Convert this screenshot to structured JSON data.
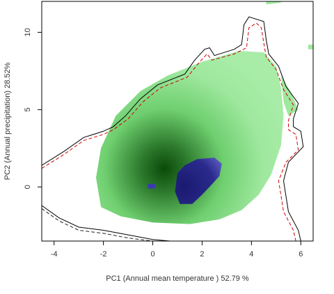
{
  "chart_data": {
    "type": "heatmap",
    "title": "",
    "xlabel": "PC1 (Annual mean temperature ) 52.79 %",
    "ylabel": "PC2 (Annual precipitation) 28.52%",
    "xlim": [
      -4.5,
      6.5
    ],
    "ylim": [
      -3.5,
      12
    ],
    "xticks": [
      {
        "value": -4,
        "label": "-4"
      },
      {
        "value": -2,
        "label": "-2"
      },
      {
        "value": 0,
        "label": "0"
      },
      {
        "value": 2,
        "label": "2"
      },
      {
        "value": 4,
        "label": "4"
      },
      {
        "value": 6,
        "label": "6"
      }
    ],
    "yticks": [
      {
        "value": 0,
        "label": "0"
      },
      {
        "value": 5,
        "label": "5"
      },
      {
        "value": 10,
        "label": "10"
      }
    ],
    "colors": {
      "density_low": "#9fe89f",
      "density_high": "#0a4a0a",
      "overlap_low": "#6a6ad0",
      "overlap_high": "#1a1a70",
      "contour_solid": "#000000",
      "contour_dashed": "#cc0000",
      "contour_dashed_2": "#222222"
    },
    "density_region": {
      "center": [
        0.7,
        0.7
      ],
      "polygon": [
        [
          -2.1,
          -1.3
        ],
        [
          -1.3,
          -1.9
        ],
        [
          0,
          -2.3
        ],
        [
          1.5,
          -2.4
        ],
        [
          2.7,
          -2.1
        ],
        [
          3.6,
          -1.5
        ],
        [
          4.3,
          -0.5
        ],
        [
          4.8,
          0.8
        ],
        [
          5.2,
          2.7
        ],
        [
          5.3,
          4.6
        ],
        [
          5.2,
          6.4
        ],
        [
          5.0,
          7.8
        ],
        [
          4.5,
          8.7
        ],
        [
          3.5,
          8.8
        ],
        [
          2.0,
          8.1
        ],
        [
          0.6,
          7.2
        ],
        [
          -0.5,
          6.2
        ],
        [
          -1.5,
          4.6
        ],
        [
          -2.1,
          2.5
        ],
        [
          -2.3,
          0.6
        ]
      ]
    },
    "overlap_region": {
      "polygon": [
        [
          1.0,
          0.9
        ],
        [
          1.3,
          1.4
        ],
        [
          1.8,
          1.8
        ],
        [
          2.5,
          1.9
        ],
        [
          2.8,
          1.5
        ],
        [
          2.7,
          0.7
        ],
        [
          2.3,
          0.0
        ],
        [
          2.0,
          -0.5
        ],
        [
          1.6,
          -1.1
        ],
        [
          1.1,
          -1.1
        ],
        [
          0.9,
          -0.3
        ]
      ],
      "square": [
        [
          -0.2,
          -0.1
        ],
        [
          0.1,
          -0.1
        ],
        [
          0.1,
          0.2
        ],
        [
          -0.2,
          0.2
        ]
      ]
    },
    "contours": [
      {
        "style": "solid",
        "points": [
          [
            -4.5,
            1.4
          ],
          [
            -3.6,
            2.3
          ],
          [
            -2.8,
            3.2
          ],
          [
            -2.0,
            3.6
          ],
          [
            -1.6,
            3.9
          ],
          [
            -1.1,
            4.6
          ],
          [
            -0.5,
            5.7
          ],
          [
            0.2,
            6.6
          ],
          [
            1.3,
            7.3
          ],
          [
            1.7,
            8.2
          ],
          [
            2.1,
            8.9
          ],
          [
            2.3,
            9.0
          ],
          [
            2.5,
            8.5
          ],
          [
            3.3,
            8.9
          ],
          [
            3.6,
            9.2
          ],
          [
            3.7,
            10.5
          ],
          [
            3.9,
            11.0
          ],
          [
            4.5,
            10.7
          ],
          [
            4.6,
            9.5
          ],
          [
            4.7,
            8.6
          ],
          [
            5.1,
            7.8
          ],
          [
            5.4,
            6.5
          ],
          [
            5.9,
            5.4
          ],
          [
            5.7,
            4.4
          ],
          [
            5.7,
            3.9
          ],
          [
            6.0,
            3.6
          ],
          [
            6.1,
            2.6
          ],
          [
            5.5,
            1.6
          ],
          [
            5.3,
            0.4
          ],
          [
            5.5,
            -1.6
          ],
          [
            5.9,
            -2.8
          ],
          [
            6.0,
            -3.5
          ]
        ]
      },
      {
        "style": "solid",
        "points": [
          [
            -4.5,
            -1.2
          ],
          [
            -3.8,
            -2.0
          ],
          [
            -3.0,
            -2.6
          ],
          [
            -2.0,
            -2.8
          ],
          [
            -1.0,
            -3.1
          ],
          [
            0,
            -3.4
          ],
          [
            0.7,
            -3.5
          ]
        ]
      },
      {
        "style": "dashed",
        "points": [
          [
            -4.5,
            1.2
          ],
          [
            -3.6,
            2.1
          ],
          [
            -2.8,
            3.0
          ],
          [
            -2.0,
            3.4
          ],
          [
            -1.6,
            3.7
          ],
          [
            -1.0,
            4.4
          ],
          [
            -0.4,
            5.5
          ],
          [
            0.3,
            6.4
          ],
          [
            1.4,
            7.1
          ],
          [
            1.8,
            7.9
          ],
          [
            2.2,
            8.6
          ],
          [
            2.4,
            8.2
          ],
          [
            3.3,
            8.6
          ],
          [
            3.8,
            9.0
          ],
          [
            3.9,
            10.3
          ],
          [
            4.2,
            10.6
          ],
          [
            4.4,
            10.3
          ],
          [
            4.5,
            9.3
          ],
          [
            4.6,
            8.4
          ],
          [
            5.0,
            7.6
          ],
          [
            5.3,
            6.3
          ],
          [
            5.7,
            5.3
          ],
          [
            5.5,
            4.3
          ],
          [
            5.5,
            3.7
          ],
          [
            5.8,
            3.4
          ],
          [
            5.9,
            2.4
          ],
          [
            5.4,
            1.6
          ],
          [
            5.1,
            0.4
          ],
          [
            5.3,
            -1.6
          ],
          [
            5.7,
            -2.8
          ],
          [
            5.8,
            -3.5
          ]
        ]
      },
      {
        "style": "dashed",
        "points": [
          [
            -4.5,
            -1.4
          ],
          [
            -3.8,
            -2.2
          ],
          [
            -3.0,
            -2.8
          ],
          [
            -2.0,
            -3.0
          ],
          [
            -1.0,
            -3.3
          ],
          [
            0,
            -3.5
          ]
        ]
      }
    ],
    "green_patches": [
      [
        [
          4.6,
          11.8
        ],
        [
          5.1,
          11.9
        ],
        [
          5.3,
          12.0
        ],
        [
          4.6,
          12.0
        ]
      ],
      [
        [
          6.3,
          8.9
        ],
        [
          6.5,
          8.9
        ],
        [
          6.5,
          9.2
        ],
        [
          6.3,
          9.2
        ]
      ],
      [
        [
          5.2,
          7.2
        ],
        [
          5.6,
          6.1
        ],
        [
          5.9,
          5.0
        ],
        [
          5.5,
          4.6
        ],
        [
          5.3,
          5.5
        ]
      ]
    ]
  }
}
